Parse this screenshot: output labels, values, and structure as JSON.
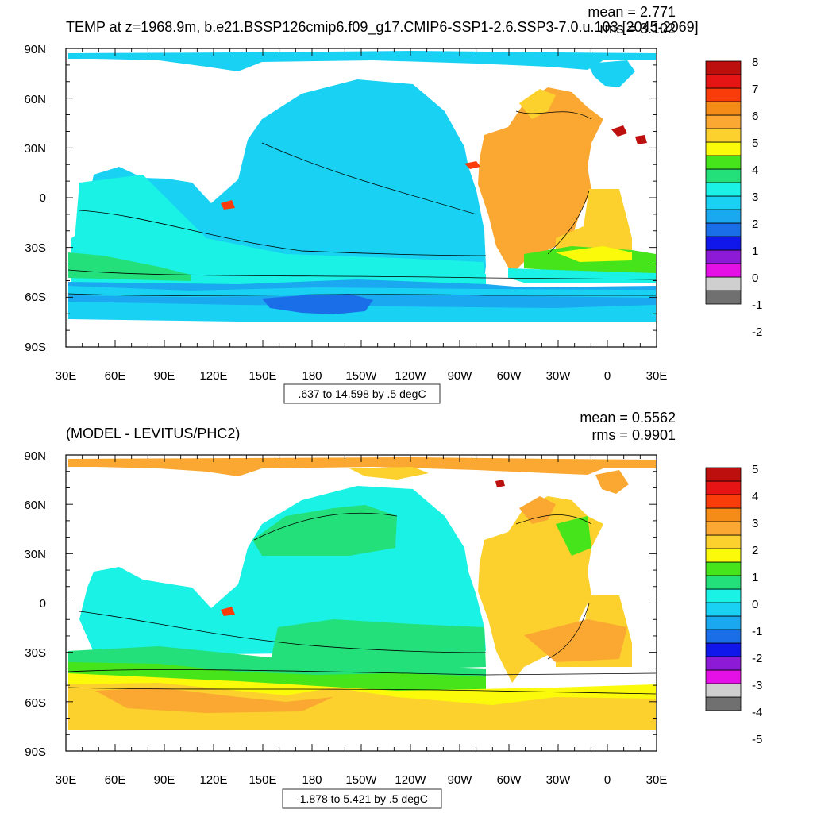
{
  "top_panel": {
    "title": "TEMP at z=1968.9m, b.e21.BSSP126cmip6.f09_g17.CMIP6-SSP1-2.6.SSP3-7.0.u.103 [2045-2069]",
    "stats": {
      "mean": "mean = 2.771",
      "rms": "rms = 3.102"
    },
    "info": ".637 to 14.598 by .5 degC",
    "colorbar_labels": [
      "8",
      "7",
      "6",
      "5",
      "4",
      "3",
      "2",
      "1",
      "0",
      "-1",
      "-2"
    ]
  },
  "bottom_panel": {
    "title": "(MODEL - LEVITUS/PHC2)",
    "stats": {
      "mean": "mean = 0.5562",
      "rms": "rms = 0.9901"
    },
    "info": "-1.878 to 5.421 by .5 degC",
    "colorbar_labels": [
      "5",
      "4",
      "3",
      "2",
      "1",
      "0",
      "-1",
      "-2",
      "-3",
      "-4",
      "-5"
    ]
  },
  "axes": {
    "lat_labels": [
      "90N",
      "60N",
      "30N",
      "0",
      "30S",
      "60S",
      "90S"
    ],
    "lon_labels": [
      "30E",
      "60E",
      "90E",
      "120E",
      "150E",
      "180",
      "150W",
      "120W",
      "90W",
      "60W",
      "30W",
      "0",
      "30E"
    ]
  },
  "colors": {
    "palette": [
      "#707070",
      "#cfcfcf",
      "#e510e5",
      "#8c1ad6",
      "#0f17ea",
      "#1a6ee8",
      "#1aa8f0",
      "#19d1f2",
      "#19f2e4",
      "#23e07a",
      "#46e41a",
      "#fafa0a",
      "#fcd12d",
      "#faa832",
      "#f58c18",
      "#fa3c0a",
      "#e61414",
      "#be0f0f"
    ],
    "land": "#ffffff"
  }
}
